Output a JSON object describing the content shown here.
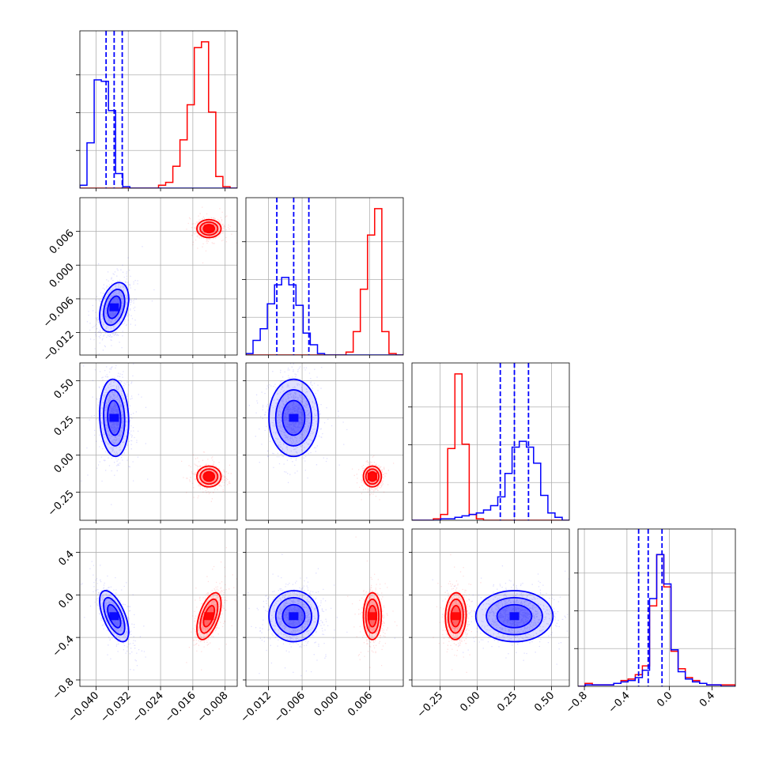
{
  "figure": {
    "type": "corner-plot",
    "grid": true,
    "colors": {
      "red": "#ff0000",
      "blue": "#0000ff",
      "grid": "#b0b0b0"
    }
  },
  "chart_data": {
    "type": "scatter",
    "title": "",
    "parameters": [
      {
        "range": [
          -0.044,
          -0.005
        ],
        "ticks": [
          -0.04,
          -0.032,
          -0.024,
          -0.016,
          -0.008
        ],
        "tick_labels": [
          "−0.040",
          "−0.032",
          "−0.024",
          "−0.016",
          "−0.008"
        ]
      },
      {
        "range": [
          -0.016,
          0.012
        ],
        "ticks": [
          -0.012,
          -0.006,
          0.0,
          0.006
        ],
        "tick_labels": [
          "−0.012",
          "−0.006",
          "0.000",
          "0.006"
        ]
      },
      {
        "range": [
          -0.44,
          0.62
        ],
        "ticks": [
          -0.25,
          0.0,
          0.25,
          0.5
        ],
        "tick_labels": [
          "−0.25",
          "0.00",
          "0.25",
          "0.50"
        ]
      },
      {
        "range": [
          -0.86,
          0.62
        ],
        "ticks": [
          -0.8,
          -0.4,
          0.0,
          0.4
        ],
        "tick_labels": [
          "−0.8",
          "−0.4",
          "0.0",
          "0.4"
        ]
      }
    ],
    "series": [
      {
        "color": "#ff0000",
        "mean": [
          -0.012,
          0.0065,
          -0.145,
          -0.2
        ],
        "sd": [
          0.0015,
          0.0008,
          0.035,
          0.11
        ],
        "corr": [
          [
            0,
            1,
            0
          ],
          [
            0,
            3,
            0.55
          ],
          [
            2,
            3,
            0.05
          ],
          [
            1,
            3,
            0
          ]
        ]
      },
      {
        "color": "#0000ff",
        "mean": [
          -0.0355,
          -0.0075,
          0.25,
          -0.2
        ],
        "sd": [
          0.0018,
          0.0022,
          0.13,
          0.12
        ],
        "corr": [
          [
            0,
            1,
            0.35
          ],
          [
            0,
            2,
            -0.1
          ],
          [
            0,
            3,
            -0.6
          ],
          [
            1,
            3,
            0
          ],
          [
            2,
            3,
            0
          ]
        ]
      }
    ],
    "quantile_lines": [
      [
        -0.0375,
        -0.0355,
        -0.0335
      ],
      [
        -0.0105,
        -0.0075,
        -0.0048
      ],
      [
        0.155,
        0.25,
        0.345
      ],
      [
        -0.29,
        -0.2,
        -0.07
      ]
    ],
    "histograms": [
      {
        "red": [
          0,
          0,
          0,
          0,
          0,
          0,
          0,
          0,
          0,
          0,
          0,
          0.02,
          0.04,
          0.15,
          0.33,
          0.57,
          0.96,
          1.0,
          0.52,
          0.08,
          0.01,
          0
        ],
        "blue": [
          0.02,
          0.31,
          0.74,
          0.73,
          0.53,
          0.1,
          0.01,
          0,
          0,
          0,
          0,
          0,
          0,
          0,
          0,
          0,
          0,
          0,
          0,
          0,
          0,
          0
        ]
      },
      {
        "red": [
          0,
          0,
          0,
          0,
          0,
          0,
          0,
          0,
          0,
          0,
          0,
          0,
          0,
          0,
          0.02,
          0.16,
          0.45,
          0.82,
          1.0,
          0.16,
          0.01,
          0
        ],
        "blue": [
          0.01,
          0.1,
          0.18,
          0.35,
          0.48,
          0.53,
          0.48,
          0.34,
          0.15,
          0.07,
          0.01,
          0,
          0,
          0,
          0,
          0,
          0,
          0,
          0,
          0,
          0,
          0
        ]
      },
      {
        "red": [
          0,
          0,
          0,
          0.01,
          0.04,
          0.49,
          1.0,
          0.52,
          0.04,
          0.01,
          0,
          0,
          0,
          0,
          0,
          0,
          0,
          0,
          0,
          0,
          0,
          0
        ],
        "blue": [
          0,
          0,
          0,
          0,
          0.01,
          0.01,
          0.02,
          0.03,
          0.04,
          0.05,
          0.07,
          0.1,
          0.16,
          0.32,
          0.5,
          0.54,
          0.5,
          0.39,
          0.17,
          0.05,
          0.02,
          0
        ]
      },
      {
        "red": [
          0,
          0.02,
          0.01,
          0.01,
          0.01,
          0.02,
          0.04,
          0.05,
          0.08,
          0.14,
          0.55,
          0.9,
          0.68,
          0.24,
          0.12,
          0.06,
          0.04,
          0.02,
          0.01,
          0.01,
          0.01,
          0.01
        ],
        "blue": [
          0,
          0.01,
          0.01,
          0.01,
          0.01,
          0.02,
          0.03,
          0.04,
          0.06,
          0.11,
          0.6,
          0.9,
          0.7,
          0.25,
          0.1,
          0.05,
          0.03,
          0.02,
          0.01,
          0.01,
          0,
          0
        ]
      }
    ]
  }
}
